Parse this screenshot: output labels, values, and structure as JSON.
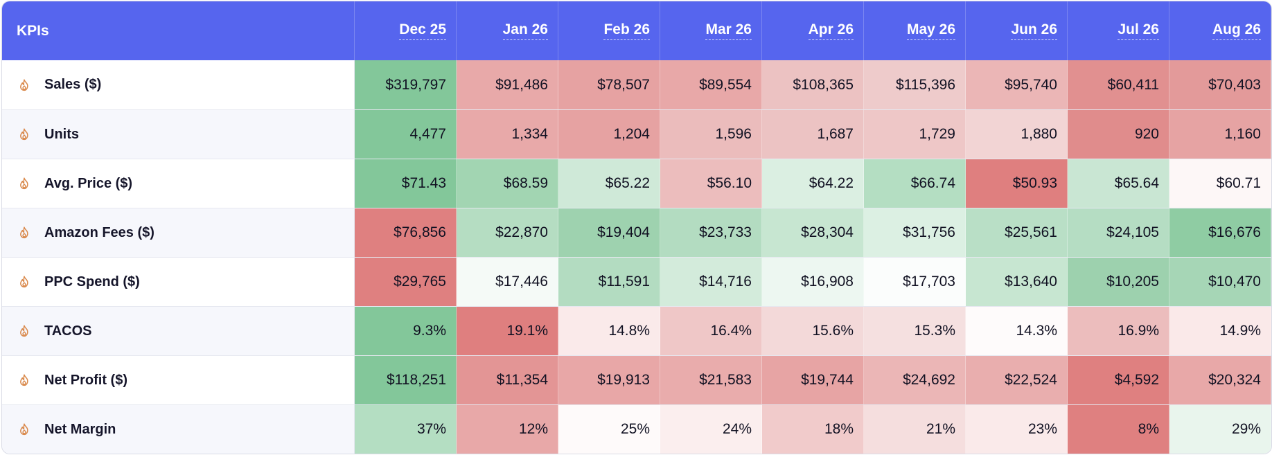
{
  "table": {
    "header_label": "KPIs",
    "months": [
      "Dec 25",
      "Jan 26",
      "Feb 26",
      "Mar 26",
      "Apr 26",
      "May 26",
      "Jun 26",
      "Jul 26",
      "Aug 26"
    ],
    "rows": [
      {
        "label": "Sales ($)",
        "icon": "flame-icon",
        "values": [
          "$319,797",
          "$91,486",
          "$78,507",
          "$89,554",
          "$108,365",
          "$115,396",
          "$95,740",
          "$60,411",
          "$70,403"
        ],
        "colors": [
          "#83c79a",
          "#e8a9a9",
          "#e6a2a2",
          "#e8a8a8",
          "#ecc2c2",
          "#eecbcb",
          "#ebb6b6",
          "#e19090",
          "#e39a9a"
        ]
      },
      {
        "label": "Units",
        "icon": "flame-icon",
        "values": [
          "4,477",
          "1,334",
          "1,204",
          "1,596",
          "1,687",
          "1,729",
          "1,880",
          "920",
          "1,160"
        ],
        "colors": [
          "#83c79a",
          "#e8a9a9",
          "#e6a2a2",
          "#ebbcbc",
          "#ecc3c3",
          "#eec7c7",
          "#f2d4d4",
          "#e08c8c",
          "#e6a3a3"
        ]
      },
      {
        "label": "Avg. Price ($)",
        "icon": "flame-icon",
        "values": [
          "$71.43",
          "$68.59",
          "$65.22",
          "$56.10",
          "$64.22",
          "$66.74",
          "$50.93",
          "$65.64",
          "$60.71"
        ],
        "colors": [
          "#83c79a",
          "#a2d5b2",
          "#cfe9d8",
          "#ecbdbd",
          "#dbefe2",
          "#b4dec2",
          "#df7f7f",
          "#c9e6d3",
          "#fdf7f7"
        ]
      },
      {
        "label": "Amazon Fees ($)",
        "icon": "flame-icon",
        "values": [
          "$76,856",
          "$22,870",
          "$19,404",
          "$23,733",
          "$28,304",
          "$31,756",
          "$25,561",
          "$24,105",
          "$16,676"
        ],
        "colors": [
          "#df8080",
          "#b5ddc2",
          "#9ed2af",
          "#b3dcc1",
          "#c7e6d1",
          "#dcf0e3",
          "#b9dfc6",
          "#b5ddc3",
          "#8fcca3"
        ]
      },
      {
        "label": "PPC Spend ($)",
        "icon": "flame-icon",
        "values": [
          "$29,765",
          "$17,446",
          "$11,591",
          "$14,716",
          "$16,908",
          "$17,703",
          "$13,640",
          "$10,205",
          "$10,470"
        ],
        "colors": [
          "#df8080",
          "#f5faf7",
          "#b3dcc1",
          "#d3ebdb",
          "#edf7f1",
          "#fbfdfc",
          "#c7e6d1",
          "#9dd1ae",
          "#a6d6b6"
        ]
      },
      {
        "label": "TACOS",
        "icon": "flame-icon",
        "values": [
          "9.3%",
          "19.1%",
          "14.8%",
          "16.4%",
          "15.6%",
          "15.3%",
          "14.3%",
          "16.9%",
          "14.9%"
        ],
        "colors": [
          "#83c79a",
          "#df7f7f",
          "#faeaea",
          "#efc7c7",
          "#f3d9d9",
          "#f5e0e0",
          "#fefbfb",
          "#ecbdbd",
          "#fae9e9"
        ]
      },
      {
        "label": "Net Profit ($)",
        "icon": "flame-icon",
        "values": [
          "$118,251",
          "$11,354",
          "$19,913",
          "$21,583",
          "$19,744",
          "$24,692",
          "$22,524",
          "$4,592",
          "$20,324"
        ],
        "colors": [
          "#83c79a",
          "#e39595",
          "#e8a7a7",
          "#e9acac",
          "#e7a4a4",
          "#ebb6b6",
          "#e9aeae",
          "#df8080",
          "#e8a8a8"
        ]
      },
      {
        "label": "Net Margin",
        "icon": "flame-icon",
        "values": [
          "37%",
          "12%",
          "25%",
          "24%",
          "18%",
          "21%",
          "23%",
          "8%",
          "29%"
        ],
        "colors": [
          "#b4dec2",
          "#e8a8a8",
          "#fefafa",
          "#fbeeee",
          "#f1cbcb",
          "#f5dede",
          "#faeaea",
          "#df8080",
          "#e9f5ed"
        ]
      }
    ]
  }
}
